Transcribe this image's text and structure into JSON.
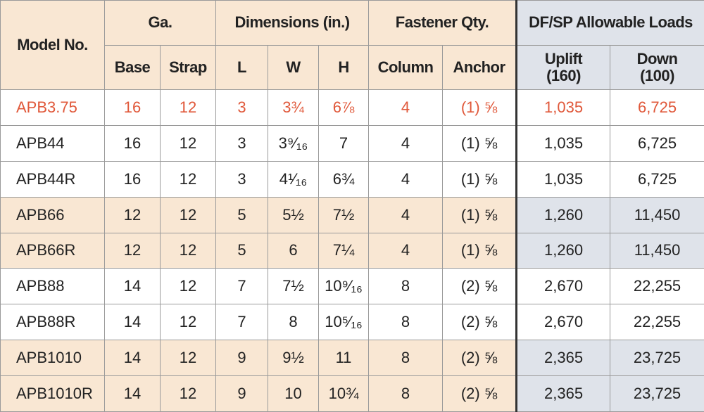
{
  "header": {
    "groups": [
      "Model No.",
      "Ga.",
      "Dimensions (in.)",
      "Fastener Qty.",
      "DF/SP Allowable Loads"
    ],
    "sub": [
      "Base",
      "Strap",
      "L",
      "W",
      "H",
      "Column",
      "Anchor",
      "Uplift\n(160)",
      "Down\n(100)"
    ]
  },
  "rows": [
    [
      "APB3.75",
      "16",
      "12",
      "3",
      "3¾",
      "6⅞",
      "4",
      "(1) ⅝",
      "1,035",
      "6,725"
    ],
    [
      "APB44",
      "16",
      "12",
      "3",
      "3⁹⁄₁₆",
      "7",
      "4",
      "(1) ⅝",
      "1,035",
      "6,725"
    ],
    [
      "APB44R",
      "16",
      "12",
      "3",
      "4¹⁄₁₆",
      "6¾",
      "4",
      "(1) ⅝",
      "1,035",
      "6,725"
    ],
    [
      "APB66",
      "12",
      "12",
      "5",
      "5½",
      "7½",
      "4",
      "(1) ⅝",
      "1,260",
      "11,450"
    ],
    [
      "APB66R",
      "12",
      "12",
      "5",
      "6",
      "7¼",
      "4",
      "(1) ⅝",
      "1,260",
      "11,450"
    ],
    [
      "APB88",
      "14",
      "12",
      "7",
      "7½",
      "10⁹⁄₁₆",
      "8",
      "(2) ⅝",
      "2,670",
      "22,255"
    ],
    [
      "APB88R",
      "14",
      "12",
      "7",
      "8",
      "10⁵⁄₁₆",
      "8",
      "(2) ⅝",
      "2,670",
      "22,255"
    ],
    [
      "APB1010",
      "14",
      "12",
      "9",
      "9½",
      "11",
      "8",
      "(2) ⅝",
      "2,365",
      "23,725"
    ],
    [
      "APB1010R",
      "14",
      "12",
      "9",
      "10",
      "10¾",
      "8",
      "(2) ⅝",
      "2,365",
      "23,725"
    ]
  ]
}
